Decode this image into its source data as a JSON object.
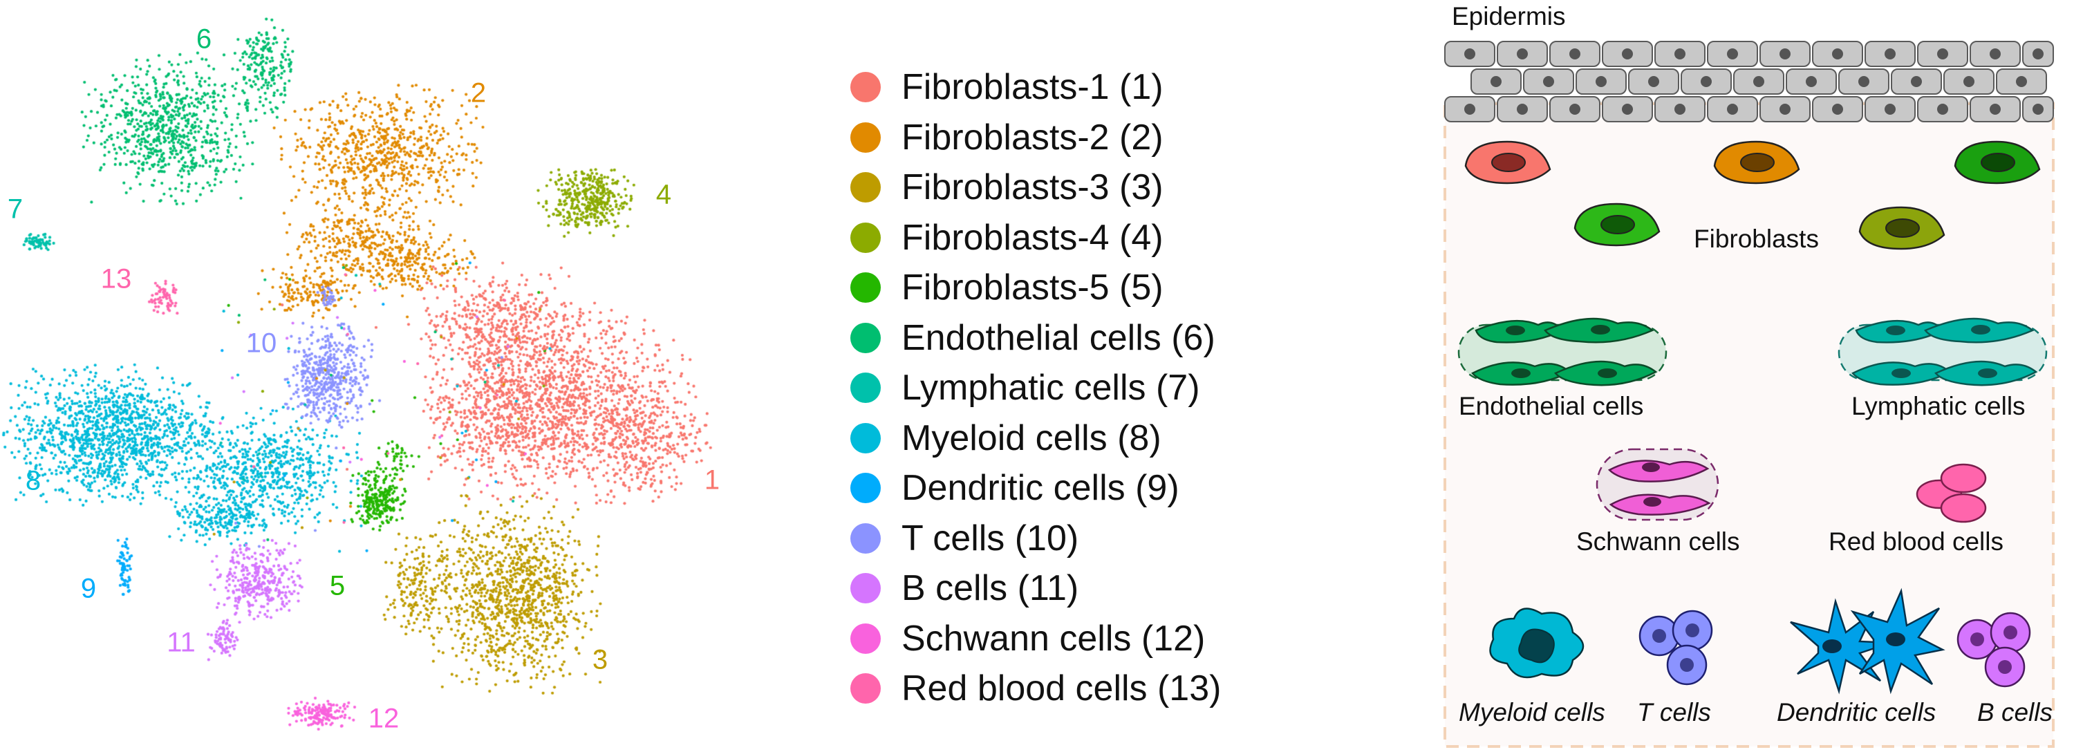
{
  "clusters": [
    {
      "id": 1,
      "name": "Fibroblasts-1",
      "label": "Fibroblasts-1 (1)",
      "num": "1",
      "color": "#F8766D"
    },
    {
      "id": 2,
      "name": "Fibroblasts-2",
      "label": "Fibroblasts-2 (2)",
      "num": "2",
      "color": "#E18A00"
    },
    {
      "id": 3,
      "name": "Fibroblasts-3",
      "label": "Fibroblasts-3 (3)",
      "num": "3",
      "color": "#BE9C00"
    },
    {
      "id": 4,
      "name": "Fibroblasts-4",
      "label": "Fibroblasts-4 (4)",
      "num": "4",
      "color": "#8CAB00"
    },
    {
      "id": 5,
      "name": "Fibroblasts-5",
      "label": "Fibroblasts-5 (5)",
      "num": "5",
      "color": "#24B700"
    },
    {
      "id": 6,
      "name": "Endothelial cells",
      "label": "Endothelial cells (6)",
      "num": "6",
      "color": "#00BE70"
    },
    {
      "id": 7,
      "name": "Lymphatic cells",
      "label": "Lymphatic cells (7)",
      "num": "7",
      "color": "#00C1AB"
    },
    {
      "id": 8,
      "name": "Myeloid cells",
      "label": "Myeloid cells (8)",
      "num": "8",
      "color": "#00BBDA"
    },
    {
      "id": 9,
      "name": "Dendritic cells",
      "label": "Dendritic cells (9)",
      "num": "9",
      "color": "#00ACFC"
    },
    {
      "id": 10,
      "name": "T cells",
      "label": "T cells (10)",
      "num": "10",
      "color": "#8B93FF"
    },
    {
      "id": 11,
      "name": "B cells",
      "label": "B cells (11)",
      "num": "11",
      "color": "#D575FE"
    },
    {
      "id": 12,
      "name": "Schwann cells",
      "label": "Schwann cells (12)",
      "num": "12",
      "color": "#F962DD"
    },
    {
      "id": 13,
      "name": "Red blood cells",
      "label": "Red blood cells (13)",
      "num": "13",
      "color": "#FF65AC"
    }
  ],
  "schematic": {
    "epidermis": "Epidermis",
    "fibroblasts": "Fibroblasts",
    "endothelial": "Endothelial cells",
    "lymphatic": "Lymphatic cells",
    "schwann": "Schwann cells",
    "rbc": "Red blood cells",
    "myeloid": "Myeloid cells",
    "tcells": "T cells",
    "dendritic": "Dendritic cells",
    "bcells": "B cells"
  }
}
